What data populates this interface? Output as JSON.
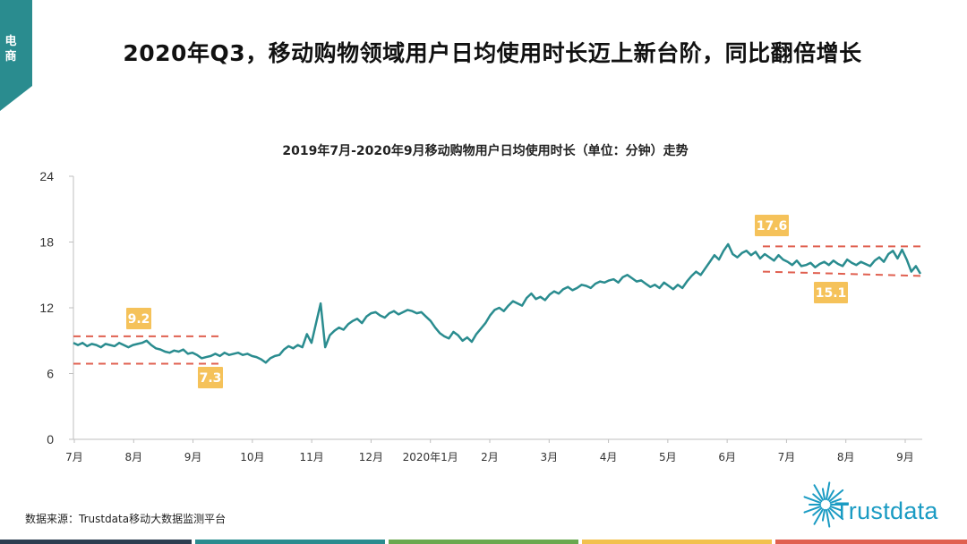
{
  "section_tab": {
    "label": "电商",
    "color": "#2a8c8f"
  },
  "page_title": "2020年Q3，移动购物领域用户日均使用时长迈上新台阶，同比翻倍增长",
  "chart_title": "2019年7月-2020年9月移动购物用户日均使用时长（单位：分钟）走势",
  "source": "数据来源：Trustdata移动大数据监测平台",
  "logo": {
    "text": "Trustdata",
    "color": "#1a9bc3"
  },
  "footer_colors": [
    "#2c3e50",
    "#2a8c8f",
    "#6aa84f",
    "#f2c14e",
    "#e06050"
  ],
  "chart_data": {
    "type": "line",
    "title": "2019年7月-2020年9月移动购物用户日均使用时长（单位：分钟）走势",
    "xlabel": "",
    "ylabel": "",
    "ylim": [
      0,
      24
    ],
    "yticks": [
      "0",
      "6",
      "12",
      "18",
      "24"
    ],
    "grid": false,
    "line_color": "#2a8c8f",
    "x_ticks": [
      "7月",
      "8月",
      "9月",
      "10月",
      "11月",
      "12月",
      "2020年1月",
      "2月",
      "3月",
      "4月",
      "5月",
      "6月",
      "7月",
      "8月",
      "9月"
    ],
    "series": [
      {
        "values": [
          8.8,
          8.6,
          8.8,
          8.5,
          8.7,
          8.6,
          8.4,
          8.7,
          8.6,
          8.5,
          8.8,
          8.6,
          8.4,
          8.6,
          8.7,
          8.8,
          9.0,
          8.6,
          8.3,
          8.2,
          8.0,
          7.9,
          8.1,
          8.0,
          8.2,
          7.8,
          7.9,
          7.7,
          7.4,
          7.5,
          7.6,
          7.8,
          7.6,
          7.9,
          7.7,
          7.8,
          7.9,
          7.7,
          7.8,
          7.6,
          7.5,
          7.3,
          7.0,
          7.4,
          7.6,
          7.7,
          8.2,
          8.5,
          8.3,
          8.6,
          8.4,
          9.6,
          8.8,
          10.6,
          12.4,
          8.4,
          9.5,
          9.9,
          10.2,
          10.0,
          10.5,
          10.8,
          11.0,
          10.6,
          11.2,
          11.5,
          11.6,
          11.3,
          11.1,
          11.5,
          11.7,
          11.4,
          11.6,
          11.8,
          11.7,
          11.5,
          11.6,
          11.2,
          10.8,
          10.2,
          9.7,
          9.4,
          9.2,
          9.8,
          9.5,
          9.0,
          9.3,
          8.9,
          9.6,
          10.1,
          10.6,
          11.3,
          11.8,
          12.0,
          11.7,
          12.2,
          12.6,
          12.4,
          12.2,
          12.9,
          13.3,
          12.8,
          13.0,
          12.7,
          13.2,
          13.5,
          13.3,
          13.7,
          13.9,
          13.6,
          13.8,
          14.1,
          14.0,
          13.8,
          14.2,
          14.4,
          14.3,
          14.5,
          14.6,
          14.3,
          14.8,
          15.0,
          14.7,
          14.4,
          14.5,
          14.2,
          13.9,
          14.1,
          13.8,
          14.3,
          14.0,
          13.7,
          14.1,
          13.8,
          14.4,
          14.9,
          15.3,
          15.0,
          15.6,
          16.2,
          16.8,
          16.4,
          17.2,
          17.8,
          16.9,
          16.6,
          17.0,
          17.2,
          16.8,
          17.1,
          16.5,
          16.9,
          16.6,
          16.3,
          16.8,
          16.4,
          16.2,
          15.9,
          16.3,
          15.8,
          15.9,
          16.1,
          15.7,
          16.0,
          16.2,
          15.9,
          16.3,
          16.0,
          15.8,
          16.4,
          16.1,
          15.9,
          16.2,
          16.0,
          15.8,
          16.3,
          16.6,
          16.2,
          16.9,
          17.2,
          16.5,
          17.3,
          16.4,
          15.3,
          15.8,
          15.1
        ]
      }
    ],
    "annotations": [
      {
        "label": "9.2",
        "y": 9.2,
        "kind": "upper"
      },
      {
        "label": "7.3",
        "y": 7.3,
        "kind": "lower"
      },
      {
        "label": "17.6",
        "y": 17.6,
        "kind": "upper"
      },
      {
        "label": "15.1",
        "y": 15.1,
        "kind": "lower"
      }
    ],
    "reference_lines": [
      {
        "y": 9.4,
        "color": "#e06050",
        "style": "dashed"
      },
      {
        "y": 6.9,
        "color": "#e06050",
        "style": "dashed"
      },
      {
        "y": 17.6,
        "color": "#e06050",
        "style": "dashed"
      },
      {
        "y": 15.1,
        "color": "#e06050",
        "style": "dashed"
      }
    ],
    "annotation_color": "#f5c25a"
  }
}
